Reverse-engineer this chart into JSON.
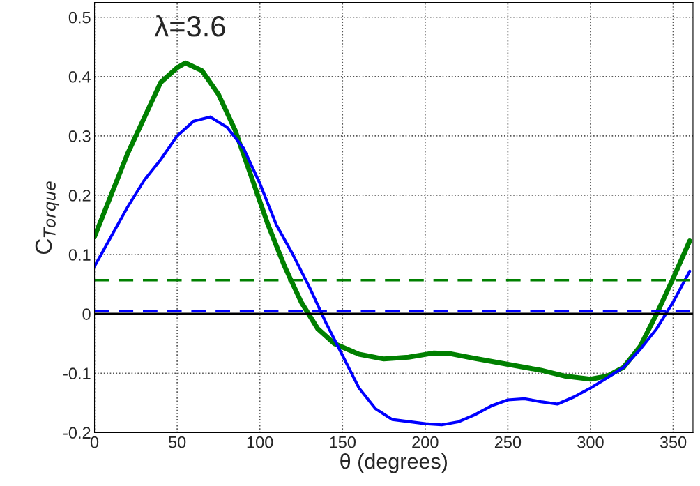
{
  "chart_data": {
    "type": "line",
    "xlabel": "θ (degrees)",
    "ylabel": "C$_{Torque}$",
    "annotations": [
      "λ=3.6"
    ],
    "xlim": [
      0,
      362
    ],
    "ylim": [
      -0.2,
      0.525
    ],
    "xticks": [
      0,
      50,
      100,
      150,
      200,
      250,
      300,
      350
    ],
    "yticks": [
      -0.2,
      -0.1,
      0,
      0.1,
      0.2,
      0.3,
      0.4,
      0.5
    ],
    "grid": true,
    "line_style": "solid",
    "series": [
      {
        "color": "#008000",
        "x": [
          0,
          10,
          20,
          30,
          40,
          50,
          55,
          65,
          75,
          85,
          95,
          105,
          115,
          125,
          135,
          145,
          160,
          175,
          190,
          205,
          215,
          230,
          250,
          270,
          285,
          300,
          310,
          320,
          330,
          340,
          350,
          360
        ],
        "values": [
          0.13,
          0.2,
          0.27,
          0.33,
          0.39,
          0.415,
          0.423,
          0.41,
          0.37,
          0.31,
          0.23,
          0.15,
          0.08,
          0.02,
          -0.025,
          -0.05,
          -0.068,
          -0.076,
          -0.073,
          -0.066,
          -0.067,
          -0.075,
          -0.085,
          -0.095,
          -0.105,
          -0.11,
          -0.105,
          -0.09,
          -0.055,
          0.0,
          0.06,
          0.123
        ]
      },
      {
        "color": "#0000ff",
        "x": [
          0,
          10,
          20,
          30,
          40,
          50,
          60,
          70,
          80,
          90,
          100,
          110,
          120,
          130,
          140,
          150,
          160,
          170,
          180,
          200,
          210,
          220,
          230,
          240,
          250,
          260,
          270,
          280,
          290,
          300,
          310,
          320,
          330,
          340,
          350,
          360
        ],
        "values": [
          0.08,
          0.13,
          0.18,
          0.225,
          0.26,
          0.3,
          0.325,
          0.332,
          0.315,
          0.28,
          0.22,
          0.15,
          0.1,
          0.045,
          -0.015,
          -0.07,
          -0.125,
          -0.16,
          -0.178,
          -0.185,
          -0.187,
          -0.182,
          -0.17,
          -0.155,
          -0.145,
          -0.143,
          -0.148,
          -0.152,
          -0.14,
          -0.125,
          -0.108,
          -0.09,
          -0.06,
          -0.025,
          0.02,
          0.072
        ]
      }
    ],
    "ref_lines": [
      {
        "axis": "y",
        "value": 0.057,
        "color": "#008000",
        "line_style": "dashed"
      },
      {
        "axis": "y",
        "value": 0.005,
        "color": "#0000ff",
        "line_style": "dashed"
      },
      {
        "axis": "y",
        "value": 0,
        "color": "#000000",
        "line_style": "solid"
      }
    ]
  }
}
